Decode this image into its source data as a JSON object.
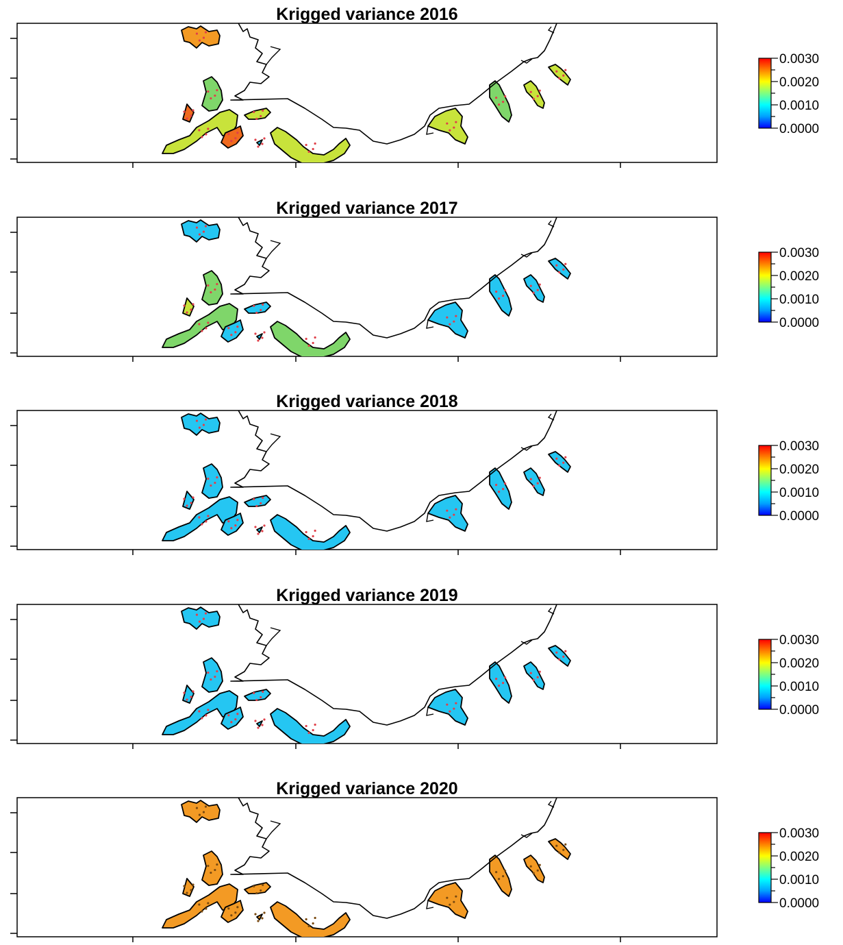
{
  "panels": [
    {
      "title": "Krigged variance 2016",
      "fill_mode": "mixed2016"
    },
    {
      "title": "Krigged variance 2017",
      "fill_mode": "mixed2017"
    },
    {
      "title": "Krigged variance 2018",
      "fill_mode": "cyan"
    },
    {
      "title": "Krigged variance 2019",
      "fill_mode": "cyan"
    },
    {
      "title": "Krigged variance 2020",
      "fill_mode": "orange"
    }
  ],
  "legend": {
    "min": 0.0,
    "max": 0.003,
    "labels": [
      "0.0030",
      "0.0020",
      "0.0010",
      "0.0000"
    ],
    "colormap": [
      "#0000ff",
      "#00a0ff",
      "#00ffff",
      "#80ff80",
      "#ffff00",
      "#ff8000",
      "#ff0000"
    ]
  },
  "colors": {
    "cyan": "#25c6f2",
    "orange": "#f39a24",
    "green": "#7fd66a",
    "yellowgreen": "#c8e33b",
    "darkorange": "#f06a1e",
    "coast": "#000000"
  }
}
